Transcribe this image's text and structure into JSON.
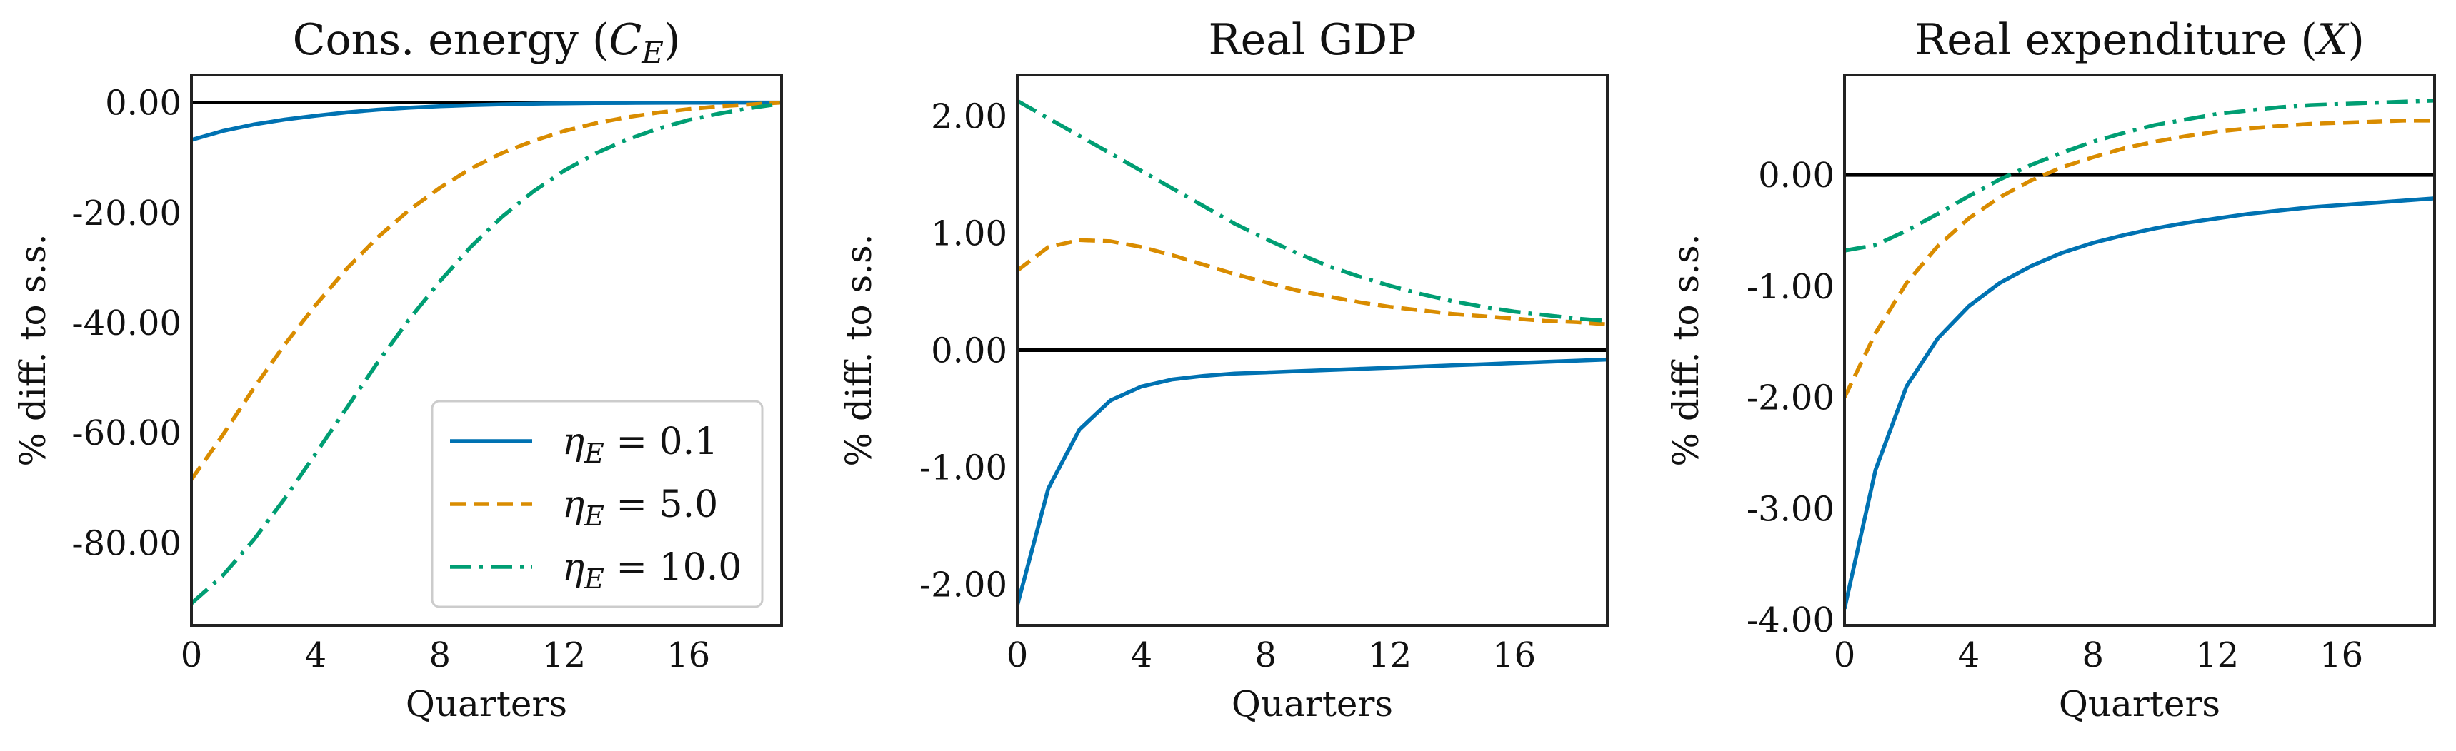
{
  "chart_data": [
    {
      "type": "line",
      "title": "Cons. energy (C_E)",
      "xlabel": "Quarters",
      "ylabel": "% diff. to s.s.",
      "xlim": [
        0,
        19
      ],
      "ylim": [
        -95,
        5
      ],
      "xticks": [
        0,
        4,
        8,
        12,
        16
      ],
      "xtick_labels": [
        "0",
        "4",
        "8",
        "12",
        "16"
      ],
      "yticks": [
        0,
        -20,
        -40,
        -60,
        -80
      ],
      "ytick_labels": [
        "0.00",
        "-20.00",
        "-40.00",
        "-60.00",
        "-80.00"
      ],
      "zero_line": true,
      "grid": false,
      "legend": {
        "placement": "lower-right",
        "entries": [
          "η_E = 0.1",
          "η_E = 5.0",
          "η_E = 10.0"
        ]
      },
      "x": [
        0,
        1,
        2,
        3,
        4,
        5,
        6,
        7,
        8,
        9,
        10,
        11,
        12,
        13,
        14,
        15,
        16,
        17,
        18,
        19
      ],
      "series": [
        {
          "name": "η_E = 0.1",
          "color": "#0072b2",
          "style": "solid",
          "values": [
            -6.8,
            -5.2,
            -4.0,
            -3.1,
            -2.4,
            -1.8,
            -1.3,
            -0.95,
            -0.68,
            -0.48,
            -0.33,
            -0.22,
            -0.15,
            -0.1,
            -0.07,
            -0.05,
            -0.03,
            -0.02,
            -0.01,
            0.0
          ]
        },
        {
          "name": "η_E = 5.0",
          "color": "#d98c00",
          "style": "dashed",
          "values": [
            -68.5,
            -60.5,
            -52.0,
            -44.0,
            -36.8,
            -30.2,
            -24.5,
            -19.6,
            -15.5,
            -12.0,
            -9.2,
            -7.0,
            -5.2,
            -3.8,
            -2.7,
            -1.85,
            -1.2,
            -0.7,
            -0.35,
            0.0
          ]
        },
        {
          "name": "η_E = 10.0",
          "color": "#009e73",
          "style": "dashdot",
          "values": [
            -91.0,
            -86.0,
            -79.5,
            -72.0,
            -63.8,
            -55.5,
            -47.2,
            -39.5,
            -32.5,
            -26.2,
            -20.8,
            -16.2,
            -12.4,
            -9.3,
            -6.8,
            -4.8,
            -3.2,
            -2.0,
            -1.0,
            -0.2
          ]
        }
      ]
    },
    {
      "type": "line",
      "title": "Real GDP",
      "xlabel": "Quarters",
      "ylabel": "% diff. to s.s.",
      "xlim": [
        0,
        19
      ],
      "ylim": [
        -2.35,
        2.35
      ],
      "xticks": [
        0,
        4,
        8,
        12,
        16
      ],
      "xtick_labels": [
        "0",
        "4",
        "8",
        "12",
        "16"
      ],
      "yticks": [
        2,
        1,
        0,
        -1,
        -2
      ],
      "ytick_labels": [
        "2.00",
        "1.00",
        "0.00",
        "-1.00",
        "-2.00"
      ],
      "zero_line": true,
      "grid": false,
      "x": [
        0,
        1,
        2,
        3,
        4,
        5,
        6,
        7,
        8,
        9,
        10,
        11,
        12,
        13,
        14,
        15,
        16,
        17,
        18,
        19
      ],
      "series": [
        {
          "name": "η_E = 0.1",
          "color": "#0072b2",
          "style": "solid",
          "values": [
            -2.18,
            -1.18,
            -0.68,
            -0.43,
            -0.31,
            -0.25,
            -0.22,
            -0.2,
            -0.19,
            -0.18,
            -0.17,
            -0.16,
            -0.15,
            -0.14,
            -0.13,
            -0.12,
            -0.11,
            -0.1,
            -0.09,
            -0.08
          ]
        },
        {
          "name": "η_E = 5.0",
          "color": "#d98c00",
          "style": "dashed",
          "values": [
            0.68,
            0.88,
            0.94,
            0.93,
            0.88,
            0.81,
            0.73,
            0.65,
            0.58,
            0.51,
            0.46,
            0.41,
            0.37,
            0.34,
            0.31,
            0.29,
            0.27,
            0.25,
            0.24,
            0.22
          ]
        },
        {
          "name": "η_E = 10.0",
          "color": "#009e73",
          "style": "dashdot",
          "values": [
            2.13,
            1.98,
            1.83,
            1.68,
            1.53,
            1.38,
            1.23,
            1.08,
            0.95,
            0.83,
            0.72,
            0.63,
            0.55,
            0.48,
            0.42,
            0.37,
            0.33,
            0.3,
            0.27,
            0.25
          ]
        }
      ]
    },
    {
      "type": "line",
      "title": "Real expenditure (X)",
      "xlabel": "Quarters",
      "ylabel": "% diff. to s.s.",
      "xlim": [
        0,
        19
      ],
      "ylim": [
        -4.05,
        0.9
      ],
      "xticks": [
        0,
        4,
        8,
        12,
        16
      ],
      "xtick_labels": [
        "0",
        "4",
        "8",
        "12",
        "16"
      ],
      "yticks": [
        0,
        -1,
        -2,
        -3,
        -4
      ],
      "ytick_labels": [
        "0.00",
        "-1.00",
        "-2.00",
        "-3.00",
        "-4.00"
      ],
      "zero_line": true,
      "grid": false,
      "x": [
        0,
        1,
        2,
        3,
        4,
        5,
        6,
        7,
        8,
        9,
        10,
        11,
        12,
        13,
        14,
        15,
        16,
        17,
        18,
        19
      ],
      "series": [
        {
          "name": "η_E = 0.1",
          "color": "#0072b2",
          "style": "solid",
          "values": [
            -3.9,
            -2.65,
            -1.9,
            -1.47,
            -1.18,
            -0.97,
            -0.82,
            -0.7,
            -0.61,
            -0.54,
            -0.48,
            -0.43,
            -0.39,
            -0.35,
            -0.32,
            -0.29,
            -0.27,
            -0.25,
            -0.23,
            -0.21
          ]
        },
        {
          "name": "η_E = 5.0",
          "color": "#d98c00",
          "style": "dashed",
          "values": [
            -2.0,
            -1.42,
            -0.97,
            -0.64,
            -0.39,
            -0.2,
            -0.05,
            0.07,
            0.16,
            0.24,
            0.3,
            0.35,
            0.39,
            0.42,
            0.44,
            0.46,
            0.47,
            0.48,
            0.49,
            0.49
          ]
        },
        {
          "name": "η_E = 10.0",
          "color": "#009e73",
          "style": "dashdot",
          "values": [
            -0.68,
            -0.63,
            -0.5,
            -0.35,
            -0.19,
            -0.04,
            0.09,
            0.2,
            0.3,
            0.38,
            0.45,
            0.5,
            0.55,
            0.58,
            0.61,
            0.63,
            0.64,
            0.65,
            0.66,
            0.67
          ]
        }
      ]
    }
  ]
}
